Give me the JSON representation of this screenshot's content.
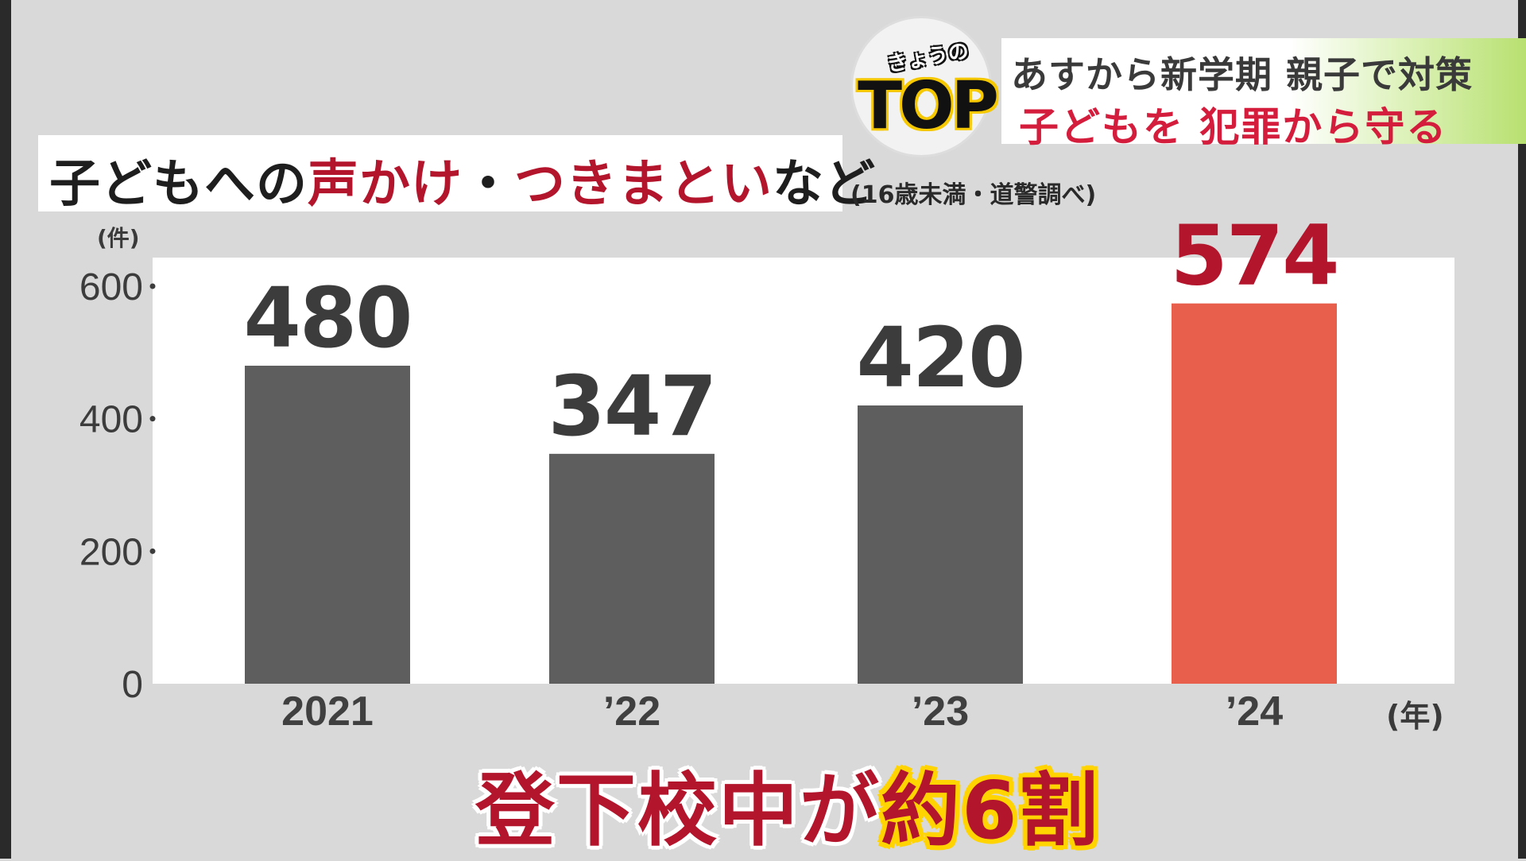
{
  "banner": {
    "logo_small": "きょうの",
    "logo_big": "TOP",
    "line1": "あすから新学期 親子で対策",
    "line2": "子どもを 犯罪から守る"
  },
  "title": {
    "part1": "子どもへの",
    "part2": "声かけ",
    "part3": "・",
    "part4": "つきまとい",
    "part5": "など"
  },
  "source_note": "(16歳未満・道警調べ)",
  "y_unit": "(件)",
  "x_unit": "(年)",
  "caption": {
    "part1": "登下校中が",
    "part2": "約6割"
  },
  "colors": {
    "bar": "#5e5e5e",
    "bar_highlight": "#e8604c",
    "value_label": "#3c3c3c",
    "value_label_highlight": "#b3152c"
  },
  "chart_data": {
    "type": "bar",
    "categories": [
      "2021",
      "’22",
      "’23",
      "’24"
    ],
    "values": [
      480,
      347,
      420,
      574
    ],
    "value_labels": [
      "480",
      "347",
      "420",
      "574"
    ],
    "highlight_index": 3,
    "yticks": [
      0,
      200,
      400,
      600
    ],
    "ylim": [
      0,
      640
    ],
    "grid": false
  }
}
